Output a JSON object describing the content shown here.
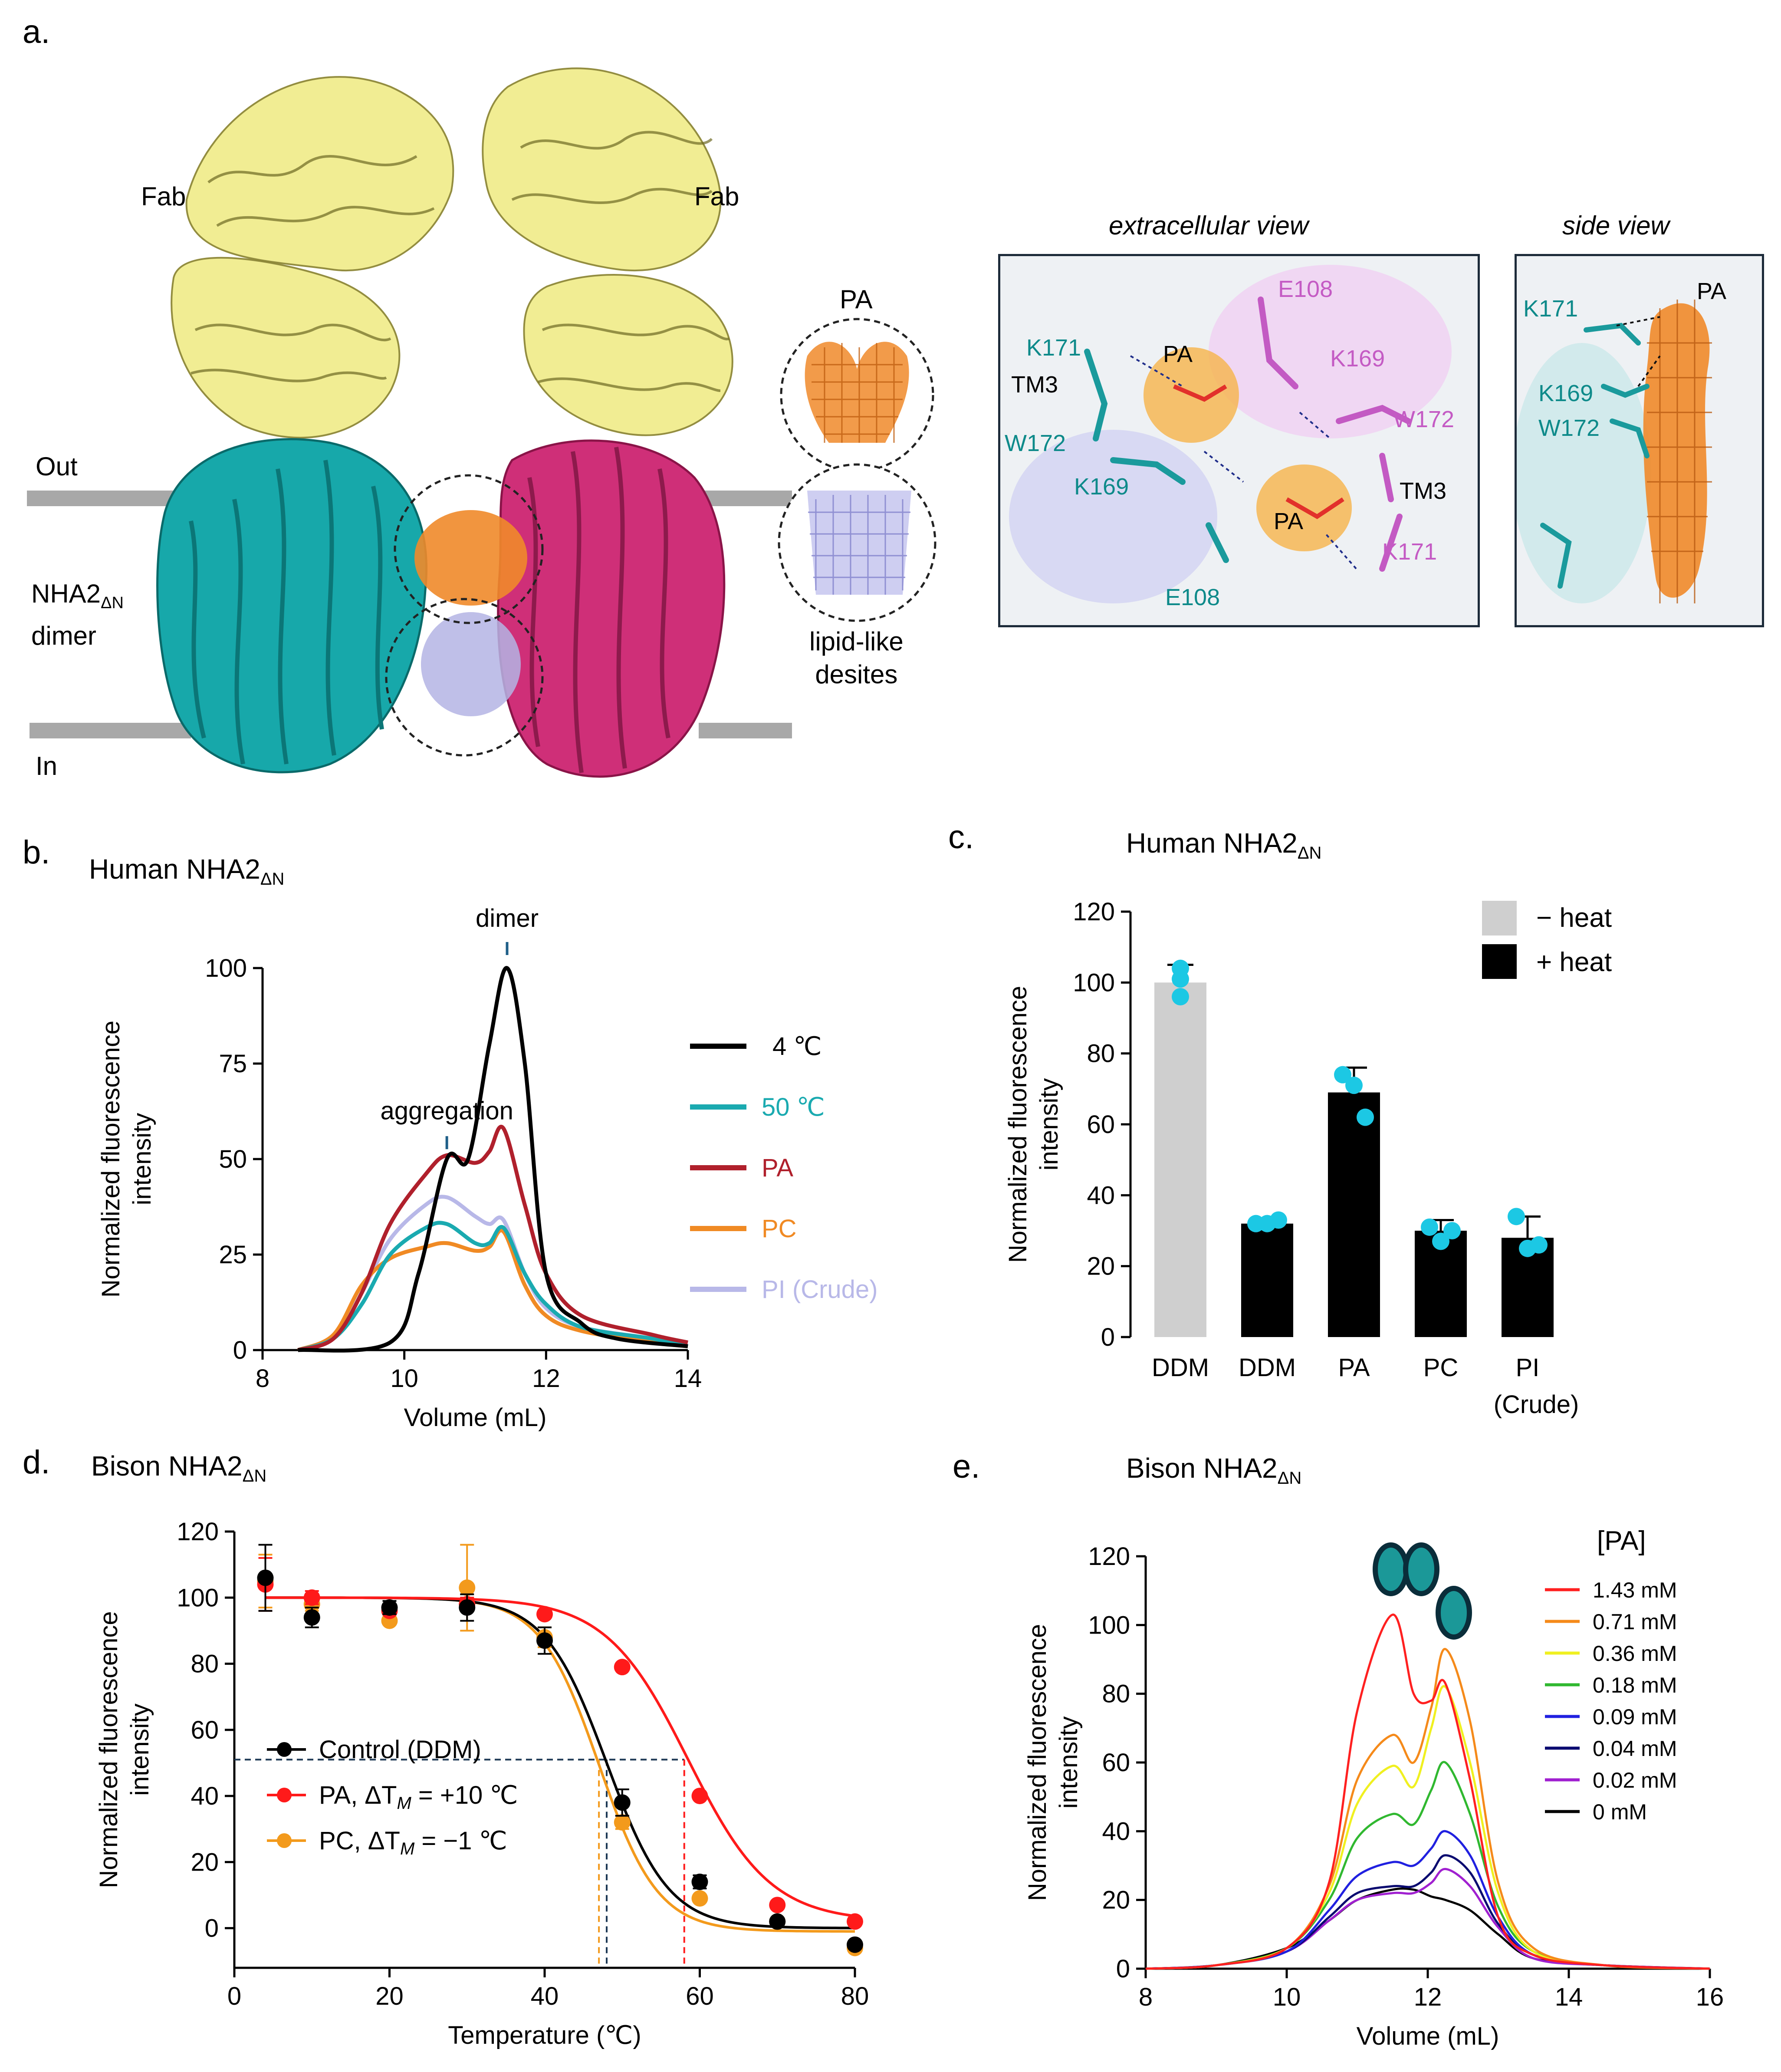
{
  "panel_a": {
    "letter": "a.",
    "fab_left": "Fab",
    "fab_right": "Fab",
    "out": "Out",
    "in": "In",
    "dimer_label_line1": "NHA2",
    "dimer_label_sub": "ΔN",
    "dimer_label_line2": "dimer",
    "pa_label": "PA",
    "lipid_line1": "lipid-like",
    "lipid_line2": "desites",
    "extra_title": "extracellular view",
    "side_title": "side view",
    "extra_labels": {
      "k171_l": "K171",
      "tm3_l": "TM3",
      "w172_l": "W172",
      "k169_l": "K169",
      "e108_b": "E108",
      "e108_t": "E108",
      "pa_t": "PA",
      "k169_r": "K169",
      "w172_r": "W172",
      "tm3_r": "TM3",
      "pa_b": "PA",
      "k171_r": "K171"
    },
    "side_labels": {
      "k171": "K171",
      "k169": "K169",
      "w172": "W172",
      "pa": "PA"
    }
  },
  "panel_b": {
    "letter": "b.",
    "title": "Human NHA2",
    "title_sub": "ΔN",
    "annot_dimer": "dimer",
    "annot_aggr": "aggregation",
    "colors": {
      "black": "#000000",
      "teal": "#1aaab0",
      "darkred": "#b0202c",
      "orange": "#f08a24",
      "lavender": "#b8b8e8"
    },
    "chart_data": {
      "type": "line",
      "xlabel": "Volume (mL)",
      "ylabel": "Normalized fluorescence intensity",
      "xlim": [
        8,
        14
      ],
      "ylim": [
        0,
        100
      ],
      "xticks": [
        8,
        10,
        12,
        14
      ],
      "yticks": [
        0,
        25,
        50,
        75,
        100
      ],
      "legend": [
        "4 ℃",
        "50 ℃",
        "PA",
        "PC",
        "PI (Crude)"
      ],
      "series": [
        {
          "name": "4 ℃",
          "x": [
            8.5,
            9.8,
            10.2,
            10.6,
            10.9,
            11.2,
            11.45,
            11.7,
            12.0,
            12.5,
            13.0,
            14.0
          ],
          "y": [
            0,
            2,
            20,
            50,
            50,
            80,
            100,
            75,
            20,
            7,
            3,
            1
          ]
        },
        {
          "name": "50 ℃",
          "x": [
            8.5,
            9.0,
            9.4,
            9.8,
            10.3,
            10.6,
            11.0,
            11.2,
            11.4,
            11.7,
            12.0,
            12.5,
            13.5,
            14.0
          ],
          "y": [
            0,
            3,
            12,
            25,
            32,
            33,
            28,
            28,
            32,
            20,
            12,
            6,
            3,
            1
          ]
        },
        {
          "name": "PA",
          "x": [
            8.5,
            9.0,
            9.4,
            9.8,
            10.3,
            10.6,
            11.0,
            11.2,
            11.4,
            11.7,
            12.0,
            12.5,
            13.5,
            14.0
          ],
          "y": [
            0,
            3,
            15,
            33,
            46,
            51,
            49,
            52,
            58,
            38,
            20,
            9,
            4,
            2
          ]
        },
        {
          "name": "PC",
          "x": [
            8.5,
            9.0,
            9.4,
            9.8,
            10.3,
            10.6,
            11.0,
            11.2,
            11.4,
            11.7,
            12.0,
            12.5,
            13.5,
            14.0
          ],
          "y": [
            0,
            4,
            17,
            24,
            27,
            28,
            26,
            27,
            31,
            17,
            9,
            5,
            2,
            1
          ]
        },
        {
          "name": "PI (Crude)",
          "x": [
            8.5,
            9.0,
            9.4,
            9.8,
            10.3,
            10.6,
            11.0,
            11.2,
            11.4,
            11.7,
            12.0,
            12.5,
            13.5,
            14.0
          ],
          "y": [
            0,
            3,
            15,
            29,
            38,
            40,
            35,
            33,
            34,
            20,
            11,
            6,
            3,
            1
          ]
        }
      ]
    }
  },
  "panel_c": {
    "letter": "c.",
    "title": "Human NHA2",
    "title_sub": "ΔN",
    "legend_minus": "− heat",
    "legend_plus": "+ heat",
    "colors": {
      "minus": "#cfcfcf",
      "plus": "#000000",
      "dots": "#1cc8e4"
    },
    "chart_data": {
      "type": "bar",
      "categories": [
        "DDM",
        "DDM",
        "PA",
        "PC",
        "PI"
      ],
      "category_sub": [
        "",
        "",
        "",
        "",
        "(Crude)"
      ],
      "values": [
        100,
        32,
        69,
        30,
        28
      ],
      "errors": [
        5,
        1,
        7,
        3,
        6
      ],
      "heat": [
        "minus",
        "plus",
        "plus",
        "plus",
        "plus"
      ],
      "points": [
        [
          104,
          101,
          96
        ],
        [
          32,
          32,
          33
        ],
        [
          74,
          71,
          62
        ],
        [
          31,
          27,
          30
        ],
        [
          34,
          25,
          26
        ]
      ],
      "ylabel": "Normalized fluorescence intensity",
      "ylim": [
        0,
        120
      ],
      "yticks": [
        0,
        20,
        40,
        60,
        80,
        100,
        120
      ]
    }
  },
  "panel_d": {
    "letter": "d.",
    "title": "Bison NHA2",
    "title_sub": "ΔN",
    "legend_control": "Control (DDM)",
    "legend_pa": "PA,  ΔT",
    "legend_pa_sub": "M",
    "legend_pa_val": " = +10 ℃",
    "legend_pc": "PC,  ΔT",
    "legend_pc_sub": "M",
    "legend_pc_val": " =  −1 ℃",
    "colors": {
      "control": "#000000",
      "pa": "#ff1a1a",
      "pc": "#f39a1c",
      "guide": "#1f3a56"
    },
    "chart_data": {
      "type": "scatter",
      "xlabel": "Temperature (℃)",
      "ylabel": "Normalized fluorescence intensity",
      "xlim": [
        0,
        80
      ],
      "ylim": [
        -12,
        120
      ],
      "xticks": [
        0,
        20,
        40,
        60,
        80
      ],
      "yticks": [
        0,
        20,
        40,
        60,
        80,
        100,
        120
      ],
      "half_level": 51,
      "tm": {
        "control": 48,
        "pa": 58,
        "pc": 47
      },
      "series": [
        {
          "name": "Control (DDM)",
          "x": [
            4,
            10,
            20,
            30,
            40,
            50,
            60,
            70,
            80
          ],
          "y": [
            106,
            94,
            97,
            97,
            87,
            38,
            14,
            2,
            -5
          ],
          "err": [
            10,
            3,
            2,
            4,
            4,
            4,
            2,
            1,
            1
          ]
        },
        {
          "name": "PA",
          "x": [
            4,
            10,
            20,
            30,
            40,
            50,
            60,
            70,
            80
          ],
          "y": [
            104,
            100,
            96,
            98,
            95,
            79,
            40,
            7,
            2
          ],
          "err": [
            8,
            2,
            1,
            2,
            1,
            1,
            1,
            1,
            1
          ]
        },
        {
          "name": "PC",
          "x": [
            4,
            10,
            20,
            30,
            40,
            50,
            60,
            70,
            80
          ],
          "y": [
            105,
            98,
            93,
            103,
            88,
            32,
            9,
            2,
            -6
          ],
          "err": [
            8,
            2,
            1,
            13,
            3,
            2,
            1,
            1,
            1
          ]
        }
      ]
    }
  },
  "panel_e": {
    "letter": "e.",
    "title": "Bison NHA2",
    "title_sub": "ΔN",
    "legend_title": "[PA]",
    "chart_data": {
      "type": "line",
      "xlabel": "Volume (mL)",
      "ylabel": "Normalized fluorescence intensity",
      "xlim": [
        8,
        16
      ],
      "ylim": [
        0,
        120
      ],
      "xticks": [
        8,
        10,
        12,
        14,
        16
      ],
      "yticks": [
        0,
        20,
        40,
        60,
        80,
        100,
        120
      ],
      "series": [
        {
          "name": "1.43 mM",
          "color": "#ff2020",
          "x": [
            8,
            9,
            10,
            10.6,
            11.0,
            11.5,
            11.8,
            12.05,
            12.25,
            12.6,
            13.0,
            13.5,
            14.5,
            16
          ],
          "y": [
            0,
            1,
            6,
            25,
            75,
            103,
            80,
            78,
            83,
            55,
            15,
            4,
            1,
            0
          ]
        },
        {
          "name": "0.71 mM",
          "color": "#f58a1a",
          "x": [
            8,
            9,
            10,
            10.6,
            11.0,
            11.5,
            11.8,
            12.05,
            12.25,
            12.6,
            13.0,
            13.5,
            14.5,
            16
          ],
          "y": [
            0,
            1,
            6,
            24,
            55,
            68,
            60,
            76,
            93,
            72,
            25,
            6,
            1,
            0
          ]
        },
        {
          "name": "0.36 mM",
          "color": "#f0f020",
          "x": [
            8,
            9,
            10,
            10.6,
            11.0,
            11.5,
            11.8,
            12.05,
            12.25,
            12.6,
            13.0,
            13.5,
            14.5,
            16
          ],
          "y": [
            0,
            1,
            6,
            22,
            48,
            59,
            53,
            70,
            82,
            60,
            22,
            5,
            1,
            0
          ]
        },
        {
          "name": "0.18 mM",
          "color": "#30b830",
          "x": [
            8,
            9,
            10,
            10.6,
            11.0,
            11.5,
            11.8,
            12.05,
            12.25,
            12.6,
            13.0,
            13.5,
            14.5,
            16
          ],
          "y": [
            0,
            1,
            6,
            20,
            38,
            45,
            42,
            52,
            60,
            45,
            18,
            5,
            1,
            0
          ]
        },
        {
          "name": "0.09 mM",
          "color": "#2020e0",
          "x": [
            8,
            9,
            10,
            10.6,
            11.0,
            11.5,
            11.8,
            12.05,
            12.25,
            12.6,
            13.0,
            13.5,
            14.5,
            16
          ],
          "y": [
            0,
            1,
            5,
            17,
            27,
            31,
            30,
            35,
            40,
            33,
            15,
            4,
            1,
            0
          ]
        },
        {
          "name": "0.04 mM",
          "color": "#0a0a70",
          "x": [
            8,
            9,
            10,
            10.6,
            11.0,
            11.5,
            11.8,
            12.05,
            12.25,
            12.6,
            13.0,
            13.5,
            14.5,
            16
          ],
          "y": [
            0,
            1,
            5,
            15,
            22,
            24,
            24,
            28,
            33,
            28,
            13,
            4,
            1,
            0
          ]
        },
        {
          "name": "0.02 mM",
          "color": "#a020d0",
          "x": [
            8,
            9,
            10,
            10.6,
            11.0,
            11.5,
            11.8,
            12.05,
            12.25,
            12.6,
            13.0,
            13.5,
            14.5,
            16
          ],
          "y": [
            0,
            1,
            5,
            14,
            20,
            22,
            22,
            25,
            29,
            24,
            12,
            3,
            1,
            0
          ]
        },
        {
          "name": "0 mM",
          "color": "#000000",
          "x": [
            8,
            9,
            10,
            10.6,
            11.0,
            11.5,
            11.8,
            12.05,
            12.25,
            12.6,
            13.0,
            13.5,
            14.5,
            16
          ],
          "y": [
            0,
            1,
            6,
            14,
            20,
            23,
            23,
            21,
            20,
            17,
            10,
            3,
            1,
            0
          ]
        }
      ]
    }
  }
}
